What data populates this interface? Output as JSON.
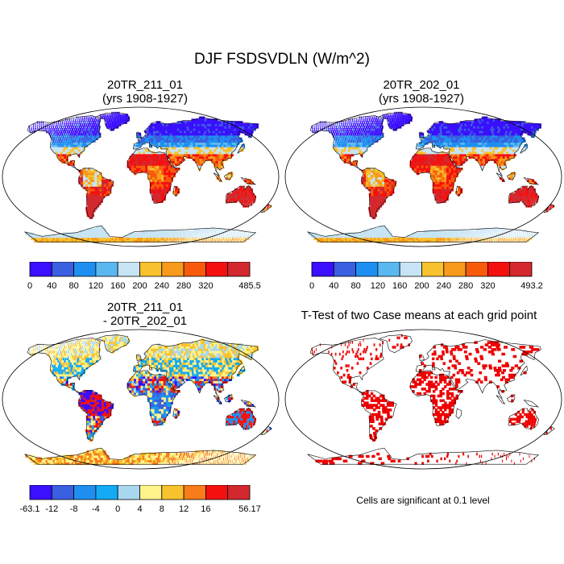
{
  "title": "DJF FSDSVDLN (W/m^2)",
  "panels": [
    {
      "title_line1": "20TR_211_01",
      "title_line2": "(yrs 1908-1927)"
    },
    {
      "title_line1": "20TR_202_01",
      "title_line2": "(yrs 1908-1927)"
    },
    {
      "title_line1": "20TR_211_01",
      "title_line2": "- 20TR_202_01"
    },
    {
      "title_line1": "T-Test of two Case means at each grid point",
      "title_line2": ""
    }
  ],
  "footnote": "Cells are significant at 0.1 level",
  "chart_data": [
    {
      "type": "heatmap",
      "title": "20TR_211_01 (yrs 1908-1927)",
      "projection": "robinson world map",
      "colorbar": {
        "labels": [
          "0",
          "40",
          "80",
          "120",
          "160",
          "200",
          "240",
          "280",
          "320",
          "485.5"
        ],
        "colors": [
          "#3b0fff",
          "#3a5fe0",
          "#1e8ff0",
          "#5ab8f0",
          "#c6e4f4",
          "#f8c22e",
          "#f89a1c",
          "#f85a0c",
          "#f51010",
          "#d2282e"
        ]
      }
    },
    {
      "type": "heatmap",
      "title": "20TR_202_01 (yrs 1908-1927)",
      "projection": "robinson world map",
      "colorbar": {
        "labels": [
          "0",
          "40",
          "80",
          "120",
          "160",
          "200",
          "240",
          "280",
          "320",
          "493.2"
        ],
        "colors": [
          "#3b0fff",
          "#3a5fe0",
          "#1e8ff0",
          "#5ab8f0",
          "#c6e4f4",
          "#f8c22e",
          "#f89a1c",
          "#f85a0c",
          "#f51010",
          "#d2282e"
        ]
      }
    },
    {
      "type": "heatmap",
      "title": "20TR_211_01 - 20TR_202_01",
      "projection": "robinson world map",
      "colorbar": {
        "labels": [
          "-63.1",
          "-12",
          "-8",
          "-4",
          "0",
          "4",
          "8",
          "12",
          "16",
          "56.17"
        ],
        "colors": [
          "#3b0fff",
          "#3a5fe0",
          "#1e8ff0",
          "#14aaf5",
          "#a8d8f0",
          "#fff48c",
          "#f8c22e",
          "#f87c1a",
          "#f51010",
          "#d2282e"
        ]
      }
    },
    {
      "type": "heatmap",
      "title": "T-Test of two Case means at each grid point",
      "projection": "robinson world map",
      "significance_color": "#ee0000"
    }
  ]
}
